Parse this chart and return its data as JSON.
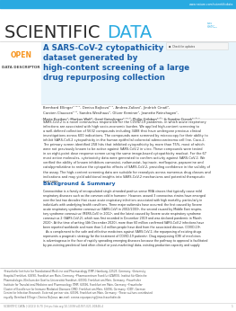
{
  "bg_color": "#ffffff",
  "header_bar_color": "#29aae1",
  "header_url": "www.nature.com/scientificdata",
  "header_url_color": "#ffffff",
  "journal_title_scientific": "SCIENTIFIC ",
  "journal_title_data": "DATA",
  "journal_title_sci_color": "#2a2a2a",
  "journal_title_data_color": "#29aae1",
  "open_label": "OPEN",
  "open_color": "#f7941d",
  "data_descriptor_label": "DATA DESCRIPTOR",
  "data_descriptor_color": "#555555",
  "article_title": "A SARS-CoV-2 cytopathicity\ndataset generated by\nhigh-content screening of a large\ndrug repurposing collection",
  "article_title_color": "#1a5ea8",
  "authors": "Bernhard Ellinger¹⁻²⁻¹, Denisa Bojkova²⁻¹, Andrea Zaliani¹, Jindrich Cinatl²,",
  "authors_line2": "Carsten Claussen¹⁻³, Sandra Westhaus², Oliver Keminer¹, Jeanette Reinshagen¹,",
  "authors_line3": "Maria Kuzikov¹, Markus Wolf¹, Gerd Geisslinger¹⁻⁴⁻⁵, Philip Gribbon¹⁻⁶⁻ & Sandra Ciesek²⁻³⁻⁷",
  "authors_color": "#333333",
  "abstract_text": "SARS-CoV-2 is a novel coronavirus responsible for the COVID-19 pandemic, in which acute respiratory\ninfections are associated with high socio-economic burden. We applied high-content screening to\na well-defined collection of 5632 compounds including 3488 that have undergone previous clinical\ninvestigations across 600 indications. The compounds were screened by microscopy for their ability to\ninhibit SARS-CoV-2 cytopathicity in the human epithelial colorectal adenocarcinoma cell line, Caco-2.\nThe primary screen identified 258 hits that inhibited cytopathicity by more than 75%, most of which\nwere not previously known to be active against SARS-CoV-2 in vitro. These compounds were tested\nin an eight-point dose response screen using the same image-based cytopathicity readout. For the 67\nmost active molecules, cytotoxicity data were generated to confirm activity against SARS-CoV-2. We\nverified the ability of known inhibitors camostat, nafamostat, lopinavir, mefloquine, papaverine and\ncatalpyrrolizidine to reduce the cytopathic effects of SARS-CoV-2, providing confidence in the validity of\nthe assay. The high-content screening data are suitable for reanalysis across numerous drug classes and\nindications and may yield additional insights into SARS-CoV-2 mechanisms and potential therapeutic\nstrategies.",
  "abstract_color": "#333333",
  "bg_summary_label": "Background & Summary",
  "bg_summary_color": "#1a5ea8",
  "bg_summary_text": "Coronaviridae is a family of encapsulated single-stranded positive-sense RNA viruses that typically cause mild\nrespiratory diseases such as the common cold in humans¹. However, around 3 coronavirus strains have emerged\nover the last two decades that cause acute respiratory infections associated with high mortality, particularly in\nindividuals with underlying health conditions. Three major outbreaks have occurred: the first caused by Severe\nacute respiratory syndrome coronavirus (SARS-CoV) in 2002/2003², the second caused by Middle East respira-\ntory syndrome coronavirus (MERS-CoV) in 2012³, and the latest caused by Severe acute respiratory syndrome\ncoronavirus 2 (SARS-CoV-2), which was first recorded in December 2019 and was declared pandemic in March\n2020⁴. At the time of writing (4th December 2020), more than 60 million confirmed SARS-CoV-2 infections have\nbeen reported worldwide and more than 1.4 million people have died from the associated disease, COVID-19⁵.\n   As a complement to the safe and effective medicines against SARS-CoV-2, the repurposing of existing drugs\nrepresents a pragmatic strategy for the treatment of COVID-19 patients⁶. Drug repurposing (DR) of medicines\nis advantageous in the face of rapidly spreading emerging diseases because the pathway to approval is facilitated\nby pre-existing preclinical (and often clinical or post-marketing) data, existing production capacity and supply",
  "bg_summary_text_color": "#333333",
  "footnote_text": "¹Fraunhofer Institute for Translational Medicine and Pharmacology ITMP, Hamburg, 22525, Germany. ²University\nHospital Frankfurt, 60590, Frankfurt am Main, Germany. ³Pharmacentrum Frankfurt(ZAFES), Institut für Klinische\nPharmakologie, Klinikum der Goethe-Universität Frankfurt, 60590, Frankfurt am Main, Germany. ⁴Fraunhofer\nInstitute for Translational Medicine and Pharmacology ITMP, 60596, Frankfurt am Main, Germany. ⁵Fraunhofer\nCluster of Excellence for Immune Mediated Diseases CIMD, Frankfurt am Main, 60596, Germany. ⁶DZIF, German\nCentre for Infection Research, External partner site, 60596, Frankfurt am Main, Germany. ⁷These authors contributed\nequally: Bernhard Ellinger, Denisa Bojkova. ✉e-mail: corona.repurposing@ime-fraunhofer.de",
  "footnote_color": "#555555",
  "page_info": "SCIENTIFIC DATA | (2021) 8:70 | https://doi.org/10.1038/s41597-021-00848-4",
  "page_num": "1",
  "page_info_color": "#888888",
  "title_box_bg": "#e8f4fb",
  "check_updates": "Check for updates"
}
